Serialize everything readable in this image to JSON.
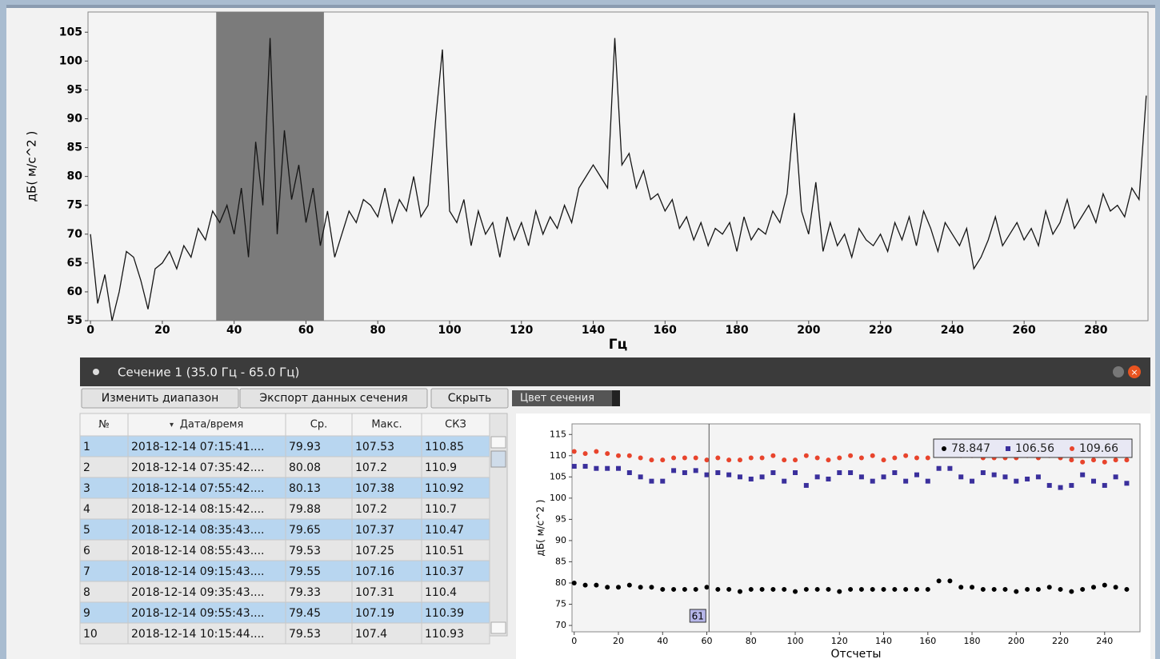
{
  "chart_data": [
    {
      "type": "line",
      "ylabel": "дБ( м/с^2 )",
      "xlabel": "Гц",
      "color": "#151515",
      "highlight": [
        35,
        65
      ],
      "highlight_color": "#7b7b7b",
      "xlim": [
        -0.7,
        294.5
      ],
      "ylim": [
        55,
        108.5
      ],
      "xticks": [
        0,
        20,
        40,
        60,
        80,
        100,
        120,
        140,
        160,
        180,
        200,
        220,
        240,
        260,
        280
      ],
      "yticks": [
        55,
        60,
        65,
        70,
        75,
        80,
        85,
        90,
        95,
        100,
        105
      ],
      "x": [
        0,
        2,
        4,
        6,
        8,
        10,
        12,
        14,
        16,
        18,
        20,
        22,
        24,
        26,
        28,
        30,
        32,
        34,
        36,
        38,
        40,
        42,
        44,
        46,
        48,
        50,
        52,
        54,
        56,
        58,
        60,
        62,
        64,
        66,
        68,
        70,
        72,
        74,
        76,
        78,
        80,
        82,
        84,
        86,
        88,
        90,
        92,
        94,
        96,
        98,
        100,
        102,
        104,
        106,
        108,
        110,
        112,
        114,
        116,
        118,
        120,
        122,
        124,
        126,
        128,
        130,
        132,
        134,
        136,
        138,
        140,
        142,
        144,
        146,
        148,
        150,
        152,
        154,
        156,
        158,
        160,
        162,
        164,
        166,
        168,
        170,
        172,
        174,
        176,
        178,
        180,
        182,
        184,
        186,
        188,
        190,
        192,
        194,
        196,
        198,
        200,
        202,
        204,
        206,
        208,
        210,
        212,
        214,
        216,
        218,
        220,
        222,
        224,
        226,
        228,
        230,
        232,
        234,
        236,
        238,
        240,
        242,
        244,
        246,
        248,
        250,
        252,
        254,
        256,
        258,
        260,
        262,
        264,
        266,
        268,
        270,
        272,
        274,
        276,
        278,
        280,
        282,
        284,
        286,
        288,
        290,
        292,
        294
      ],
      "values": [
        70,
        58,
        63,
        55,
        60,
        67,
        66,
        62,
        57,
        64,
        65,
        67,
        64,
        68,
        66,
        71,
        69,
        74,
        72,
        75,
        70,
        78,
        66,
        86,
        75,
        104,
        70,
        88,
        76,
        82,
        72,
        78,
        68,
        74,
        66,
        70,
        74,
        72,
        76,
        75,
        73,
        78,
        72,
        76,
        74,
        80,
        73,
        75,
        89,
        102,
        74,
        72,
        76,
        68,
        74,
        70,
        72,
        66,
        73,
        69,
        72,
        68,
        74,
        70,
        73,
        71,
        75,
        72,
        78,
        80,
        82,
        80,
        78,
        104,
        82,
        84,
        78,
        81,
        76,
        77,
        74,
        76,
        71,
        73,
        69,
        72,
        68,
        71,
        70,
        72,
        67,
        73,
        69,
        71,
        70,
        74,
        72,
        77,
        91,
        74,
        70,
        79,
        67,
        72,
        68,
        70,
        66,
        71,
        69,
        68,
        70,
        67,
        72,
        69,
        73,
        68,
        74,
        71,
        67,
        72,
        70,
        68,
        71,
        64,
        66,
        69,
        73,
        68,
        70,
        72,
        69,
        71,
        68,
        74,
        70,
        72,
        76,
        71,
        73,
        75,
        72,
        77,
        74,
        75,
        73,
        78,
        76,
        94
      ]
    },
    {
      "type": "scatter",
      "ylabel": "дБ( м/с^2 )",
      "xlabel": "Отсчеты",
      "xlim": [
        -1,
        256
      ],
      "ylim": [
        68.5,
        117.5
      ],
      "xticks": [
        0,
        20,
        40,
        60,
        80,
        100,
        120,
        140,
        160,
        180,
        200,
        220,
        240
      ],
      "yticks": [
        70,
        75,
        80,
        85,
        90,
        95,
        100,
        105,
        110,
        115
      ],
      "x": [
        0,
        5,
        10,
        15,
        20,
        25,
        30,
        35,
        40,
        45,
        50,
        55,
        60,
        65,
        70,
        75,
        80,
        85,
        90,
        95,
        100,
        105,
        110,
        115,
        120,
        125,
        130,
        135,
        140,
        145,
        150,
        155,
        160,
        165,
        170,
        175,
        180,
        185,
        190,
        195,
        200,
        205,
        210,
        215,
        220,
        225,
        230,
        235,
        240,
        245,
        250
      ],
      "series": [
        {
          "color": "#000000",
          "marker": "circle",
          "values": [
            80,
            79.5,
            79.5,
            79,
            79,
            79.5,
            79,
            79,
            78.5,
            78.5,
            78.5,
            78.5,
            79,
            78.5,
            78.5,
            78,
            78.5,
            78.5,
            78.5,
            78.5,
            78,
            78.5,
            78.5,
            78.5,
            78,
            78.5,
            78.5,
            78.5,
            78.5,
            78.5,
            78.5,
            78.5,
            78.5,
            80.5,
            80.5,
            79,
            79,
            78.5,
            78.5,
            78.5,
            78,
            78.5,
            78.5,
            79,
            78.5,
            78,
            78.5,
            79,
            79.5,
            79,
            78.5
          ]
        },
        {
          "color": "#3a2f9c",
          "marker": "square",
          "values": [
            107.5,
            107.5,
            107,
            107,
            107,
            106,
            105,
            104,
            104,
            106.5,
            106,
            106.5,
            105.5,
            106,
            105.5,
            105,
            104.5,
            105,
            106,
            104,
            106,
            103,
            105,
            104.5,
            106,
            106,
            105,
            104,
            105,
            106,
            104,
            105.5,
            104,
            107,
            107,
            105,
            104,
            106,
            105.5,
            105,
            104,
            104.5,
            105,
            103,
            102.5,
            103,
            105.5,
            104,
            103,
            105,
            103.5
          ]
        },
        {
          "color": "#e8442c",
          "marker": "circle",
          "values": [
            111,
            110.5,
            111,
            110.5,
            110,
            110,
            109.5,
            109,
            109,
            109.5,
            109.5,
            109.5,
            109,
            109.5,
            109,
            109,
            109.5,
            109.5,
            110,
            109,
            109,
            110,
            109.5,
            109,
            109.5,
            110,
            109.5,
            110,
            109,
            109.5,
            110,
            109.5,
            109.5,
            111,
            111.5,
            110,
            110,
            109.5,
            109.5,
            109.5,
            109.5,
            110,
            109.5,
            110,
            109.5,
            109,
            108.5,
            109,
            108.5,
            109,
            109
          ]
        }
      ],
      "cursor": {
        "x": 61,
        "readout": [
          78.847,
          106.56,
          109.66
        ]
      }
    }
  ],
  "window": {
    "title": "Сечение 1 (35.0 Гц - 65.0 Гц)",
    "buttons": [
      "Изменить диапазон",
      "Экспорт данных сечения",
      "Скрыть"
    ],
    "color_label": "Цвет сечения",
    "table": {
      "columns": [
        "№",
        "Дата/время",
        "Ср.",
        "Макс.",
        "СКЗ"
      ],
      "rows": [
        [
          "1",
          "2018-12-14 07:15:41....",
          "79.93",
          "107.53",
          "110.85"
        ],
        [
          "2",
          "2018-12-14 07:35:42....",
          "80.08",
          "107.2",
          "110.9"
        ],
        [
          "3",
          "2018-12-14 07:55:42....",
          "80.13",
          "107.38",
          "110.92"
        ],
        [
          "4",
          "2018-12-14 08:15:42....",
          "79.88",
          "107.2",
          "110.7"
        ],
        [
          "5",
          "2018-12-14 08:35:43....",
          "79.65",
          "107.37",
          "110.47"
        ],
        [
          "6",
          "2018-12-14 08:55:43....",
          "79.53",
          "107.25",
          "110.51"
        ],
        [
          "7",
          "2018-12-14 09:15:43....",
          "79.55",
          "107.16",
          "110.37"
        ],
        [
          "8",
          "2018-12-14 09:35:43....",
          "79.33",
          "107.31",
          "110.4"
        ],
        [
          "9",
          "2018-12-14 09:55:43....",
          "79.45",
          "107.19",
          "110.39"
        ],
        [
          "10",
          "2018-12-14 10:15:44....",
          "79.53",
          "107.4",
          "110.93"
        ]
      ]
    }
  }
}
